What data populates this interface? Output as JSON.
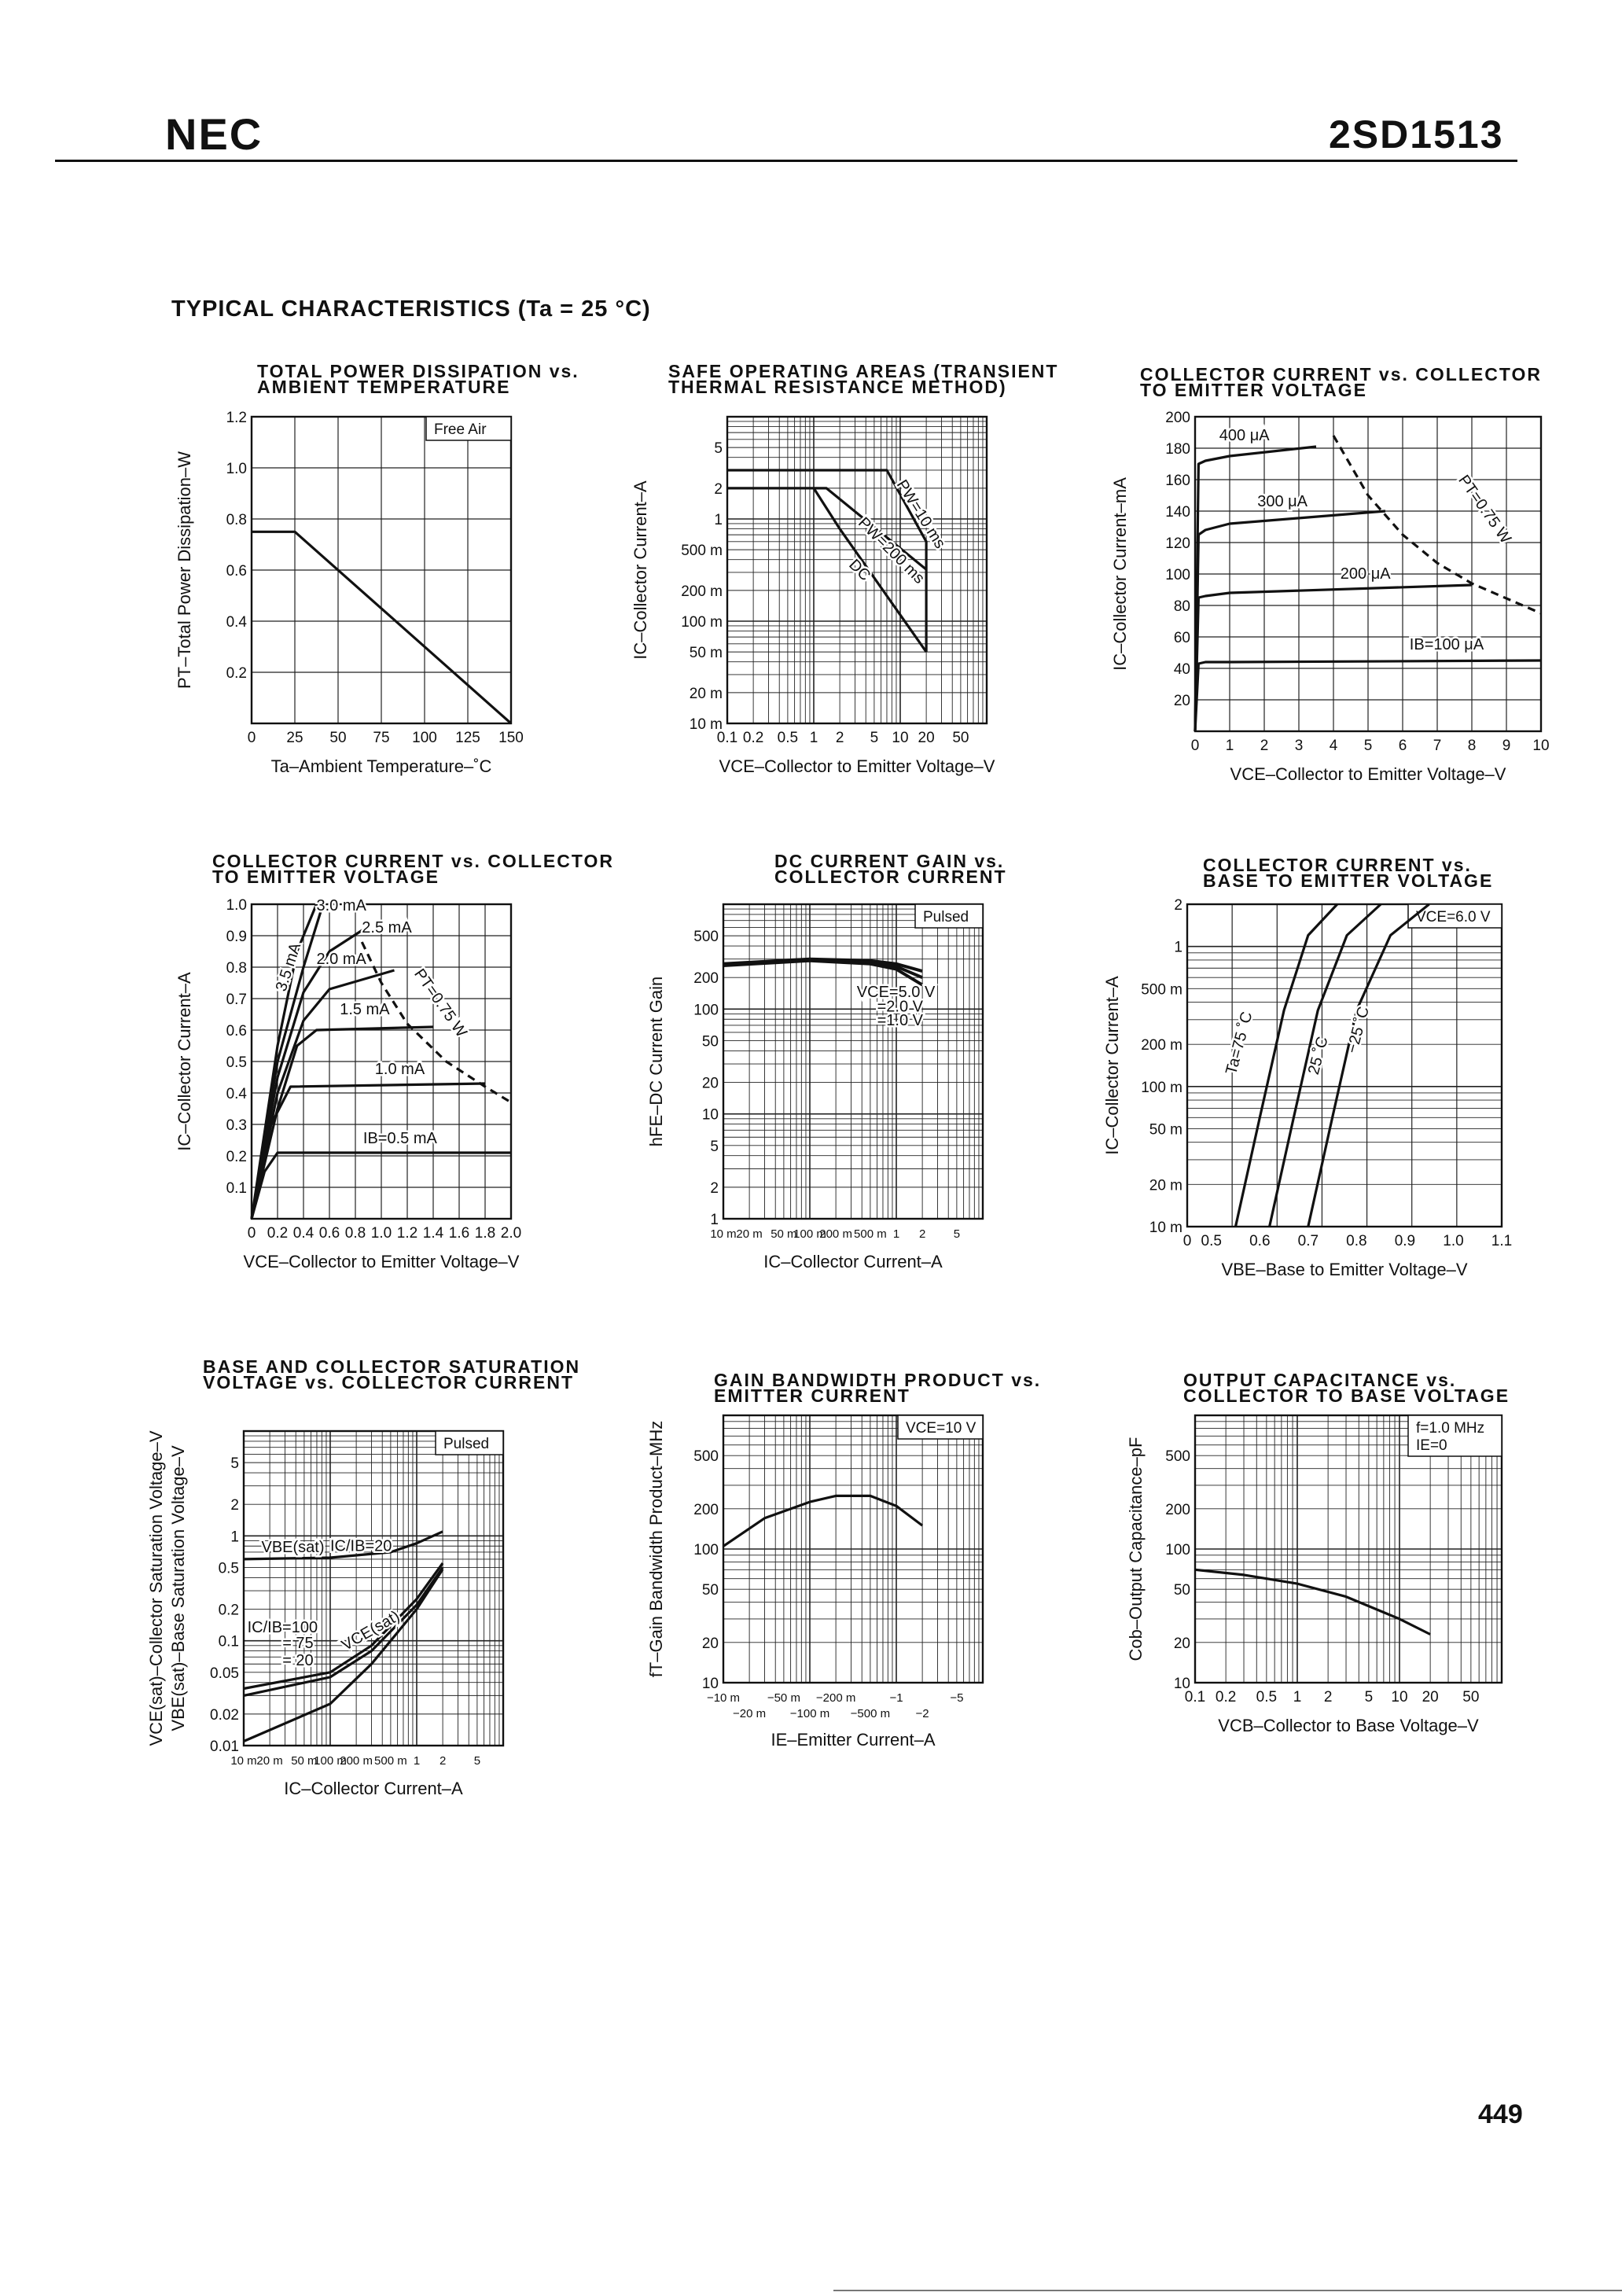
{
  "header": {
    "brand": "NEC",
    "part_number": "2SD1513"
  },
  "section_title": "TYPICAL CHARACTERISTICS (Ta = 25 °C)",
  "page_number": "449",
  "charts": [
    {
      "title": "TOTAL POWER DISSIPATION vs.\nAMBIENT TEMPERATURE",
      "xlabel": "Ta–Ambient Temperature–˚C",
      "ylabel": "PT–Total Power Dissipation–W",
      "xticks": [
        "0",
        "25",
        "50",
        "75",
        "100",
        "125",
        "150"
      ],
      "yticks": [
        "1.2",
        "1.0",
        "0.8",
        "0.6",
        "0.4",
        "0.2"
      ],
      "annotation": "Free Air"
    },
    {
      "title": "SAFE OPERATING AREAS (TRANSIENT\nTHERMAL RESISTANCE METHOD)",
      "xlabel": "VCE–Collector to Emitter Voltage–V",
      "ylabel": "IC–Collector Current–A",
      "xticks": [
        "0.1",
        "0.2",
        "0.5",
        "1",
        "2",
        "5",
        "10",
        "20",
        "50"
      ],
      "yticks": [
        "5",
        "2",
        "1",
        "500 m",
        "200 m",
        "100 m",
        "50 m",
        "20 m",
        "10 m"
      ],
      "labels": [
        "PW=10 ms",
        "PW=200 ms",
        "DC"
      ]
    },
    {
      "title": "COLLECTOR CURRENT vs. COLLECTOR\nTO EMITTER VOLTAGE",
      "xlabel": "VCE–Collector to Emitter Voltage–V",
      "ylabel": "IC–Collector Current–mA",
      "xticks": [
        "0",
        "1",
        "2",
        "3",
        "4",
        "5",
        "6",
        "7",
        "8",
        "9",
        "10"
      ],
      "yticks": [
        "200",
        "180",
        "160",
        "140",
        "120",
        "100",
        "80",
        "60",
        "40",
        "20"
      ],
      "labels": [
        "400 μA",
        "300 μA",
        "200 μA",
        "IB=100 μA",
        "PT=0.75 W"
      ]
    },
    {
      "title": "COLLECTOR CURRENT vs. COLLECTOR\nTO EMITTER VOLTAGE",
      "xlabel": "VCE–Collector to Emitter Voltage–V",
      "ylabel": "IC–Collector Current–A",
      "xticks": [
        "0",
        "0.2",
        "0.4",
        "0.6",
        "0.8",
        "1.0",
        "1.2",
        "1.4",
        "1.6",
        "1.8",
        "2.0"
      ],
      "yticks": [
        "1.0",
        "0.9",
        "0.8",
        "0.7",
        "0.6",
        "0.5",
        "0.4",
        "0.3",
        "0.2",
        "0.1"
      ],
      "labels": [
        "3.5 mA",
        "3.0 mA",
        "2.5 mA",
        "2.0 mA",
        "1.5 mA",
        "1.0 mA",
        "IB=0.5 mA",
        "PT=0.75 W"
      ]
    },
    {
      "title": "DC CURRENT GAIN vs.\nCOLLECTOR CURRENT",
      "xlabel": "IC–Collector Current–A",
      "ylabel": "hFE–DC Current Gain",
      "xticks": [
        "10 m",
        "20 m",
        "50 m",
        "100 m",
        "200 m",
        "500 m",
        "1",
        "2",
        "5"
      ],
      "yticks": [
        "500",
        "200",
        "100",
        "50",
        "20",
        "10",
        "5",
        "2",
        "1"
      ],
      "labels": [
        "VCE=5.0 V",
        "=2.0 V",
        "=1.0 V"
      ],
      "annotation": "Pulsed"
    },
    {
      "title": "COLLECTOR CURRENT vs.\nBASE TO EMITTER VOLTAGE",
      "xlabel": "VBE–Base to Emitter Voltage–V",
      "ylabel": "IC–Collector Current–A",
      "xticks": [
        "0",
        "0.5",
        "0.6",
        "0.7",
        "0.8",
        "0.9",
        "1.0",
        "1.1"
      ],
      "yticks": [
        "2",
        "1",
        "500 m",
        "200 m",
        "100 m",
        "50 m",
        "20 m",
        "10 m"
      ],
      "labels": [
        "Ta=75 ˚C",
        "25 ˚C",
        "−25 ˚C"
      ],
      "annotation": "VCE=6.0 V"
    },
    {
      "title": "BASE AND COLLECTOR SATURATION\nVOLTAGE vs. COLLECTOR CURRENT",
      "xlabel": "IC–Collector Current–A",
      "ylabel": "VCE(sat)–Collector Saturation Voltage–V",
      "ylabel2": "VBE(sat)–Base Saturation Voltage–V",
      "xticks": [
        "10 m",
        "20 m",
        "50 m",
        "100 m",
        "200 m",
        "500 m",
        "1",
        "2",
        "5"
      ],
      "yticks": [
        "5",
        "2",
        "1",
        "0.5",
        "0.2",
        "0.1",
        "0.05",
        "0.02",
        "0.01"
      ],
      "labels": [
        "VBE(sat)",
        "IC/IB=20",
        "IC/IB=100",
        "= 75",
        "= 20",
        "VCE(sat)"
      ],
      "annotation": "Pulsed"
    },
    {
      "title": "GAIN BANDWIDTH PRODUCT vs.\nEMITTER CURRENT",
      "xlabel": "IE–Emitter Current–A",
      "ylabel": "fT–Gain Bandwidth Product–MHz",
      "xticks": [
        "−10 m",
        "−20 m",
        "−50 m",
        "−100 m",
        "−200 m",
        "−500 m",
        "−1",
        "−2",
        "−5"
      ],
      "yticks": [
        "500",
        "200",
        "100",
        "50",
        "20",
        "10"
      ],
      "annotation": "VCE=10 V"
    },
    {
      "title": "OUTPUT CAPACITANCE vs.\nCOLLECTOR TO BASE VOLTAGE",
      "xlabel": "VCB–Collector to Base Voltage–V",
      "ylabel": "Cob–Output Capacitance–pF",
      "xticks": [
        "0.1",
        "0.2",
        "0.5",
        "1",
        "2",
        "5",
        "10",
        "20",
        "50"
      ],
      "yticks": [
        "500",
        "200",
        "100",
        "50",
        "20",
        "10"
      ],
      "annotation": "f=1.0 MHz",
      "annotation2": "IE=0"
    }
  ],
  "chart_data": [
    {
      "type": "line",
      "title": "TOTAL POWER DISSIPATION vs. AMBIENT TEMPERATURE",
      "xlabel": "Ta–Ambient Temperature–˚C",
      "ylabel": "PT–Total Power Dissipation–W",
      "xlim": [
        0,
        150
      ],
      "ylim": [
        0,
        1.2
      ],
      "series": [
        {
          "x": [
            0,
            25,
            150
          ],
          "y": [
            0.75,
            0.75,
            0
          ]
        }
      ]
    },
    {
      "type": "line",
      "title": "SAFE OPERATING AREAS",
      "xscale": "log",
      "yscale": "log",
      "xlim": [
        0.1,
        100
      ],
      "ylim": [
        0.01,
        10
      ],
      "series": [
        {
          "name": "PW=10 ms",
          "x": [
            0.1,
            7,
            20,
            20
          ],
          "y": [
            3,
            3,
            0.6,
            0.05
          ]
        },
        {
          "name": "PW=200 ms",
          "x": [
            0.1,
            1.4,
            20
          ],
          "y": [
            2,
            2,
            0.32
          ]
        },
        {
          "name": "DC",
          "x": [
            1,
            2,
            20
          ],
          "y": [
            2,
            0.8,
            0.05
          ]
        }
      ]
    },
    {
      "type": "line",
      "title": "COLLECTOR CURRENT vs. COLLECTOR TO EMITTER VOLTAGE (mA)",
      "xlim": [
        0,
        10
      ],
      "ylim": [
        0,
        200
      ],
      "series": [
        {
          "name": "400 μA",
          "x": [
            0,
            0.1,
            0.3,
            1,
            3.5
          ],
          "y": [
            0,
            170,
            172,
            175,
            181
          ]
        },
        {
          "name": "300 μA",
          "x": [
            0,
            0.1,
            0.3,
            1,
            5.5
          ],
          "y": [
            0,
            125,
            128,
            132,
            140
          ]
        },
        {
          "name": "200 μA",
          "x": [
            0,
            0.1,
            0.3,
            1,
            8
          ],
          "y": [
            0,
            85,
            86,
            88,
            93
          ]
        },
        {
          "name": "IB=100 μA",
          "x": [
            0,
            0.1,
            0.3,
            1,
            10
          ],
          "y": [
            0,
            43,
            44,
            44,
            45
          ]
        },
        {
          "name": "PT=0.75 W",
          "x": [
            4,
            5,
            6,
            7,
            8,
            10
          ],
          "y": [
            188,
            150,
            125,
            107,
            94,
            75
          ]
        }
      ]
    },
    {
      "type": "line",
      "title": "COLLECTOR CURRENT vs. COLLECTOR TO EMITTER VOLTAGE (A)",
      "xlim": [
        0,
        2.0
      ],
      "ylim": [
        0,
        1.0
      ],
      "series": [
        {
          "name": "3.5 mA",
          "x": [
            0,
            0.2,
            0.35,
            0.5
          ],
          "y": [
            0,
            0.55,
            0.85,
            1.0
          ]
        },
        {
          "name": "3.0 mA",
          "x": [
            0,
            0.2,
            0.4,
            0.55
          ],
          "y": [
            0,
            0.5,
            0.8,
            1.0
          ]
        },
        {
          "name": "2.5 mA",
          "x": [
            0,
            0.2,
            0.4,
            0.6,
            0.9
          ],
          "y": [
            0,
            0.45,
            0.72,
            0.85,
            0.93
          ]
        },
        {
          "name": "2.0 mA",
          "x": [
            0,
            0.2,
            0.4,
            0.6,
            1.1
          ],
          "y": [
            0,
            0.4,
            0.63,
            0.73,
            0.79
          ]
        },
        {
          "name": "1.5 mA",
          "x": [
            0,
            0.2,
            0.35,
            0.5,
            1.4
          ],
          "y": [
            0,
            0.35,
            0.55,
            0.6,
            0.61
          ]
        },
        {
          "name": "1.0 mA",
          "x": [
            0,
            0.15,
            0.3,
            1.8
          ],
          "y": [
            0,
            0.3,
            0.42,
            0.43
          ]
        },
        {
          "name": "IB=0.5 mA",
          "x": [
            0,
            0.1,
            0.2,
            2.0
          ],
          "y": [
            0,
            0.15,
            0.21,
            0.21
          ]
        },
        {
          "name": "PT=0.75 W",
          "x": [
            0.85,
            1.0,
            1.2,
            1.5,
            1.8,
            2.0
          ],
          "y": [
            0.88,
            0.75,
            0.62,
            0.5,
            0.42,
            0.37
          ]
        }
      ]
    },
    {
      "type": "line",
      "title": "DC CURRENT GAIN vs. COLLECTOR CURRENT",
      "xscale": "log",
      "yscale": "log",
      "xlim": [
        0.01,
        10
      ],
      "ylim": [
        1,
        1000
      ],
      "annotation": "Pulsed",
      "series": [
        {
          "name": "VCE=5.0 V",
          "x": [
            0.01,
            0.1,
            0.5,
            1,
            2
          ],
          "y": [
            270,
            300,
            290,
            270,
            230
          ]
        },
        {
          "name": "=2.0 V",
          "x": [
            0.01,
            0.1,
            0.5,
            1,
            2
          ],
          "y": [
            265,
            295,
            280,
            255,
            200
          ]
        },
        {
          "name": "=1.0 V",
          "x": [
            0.01,
            0.1,
            0.5,
            1,
            2
          ],
          "y": [
            260,
            290,
            270,
            240,
            170
          ]
        }
      ]
    },
    {
      "type": "line",
      "title": "COLLECTOR CURRENT vs. BASE TO EMITTER VOLTAGE",
      "yscale": "log",
      "xlim": [
        0.45,
        1.1
      ],
      "ylim": [
        0.01,
        2
      ],
      "annotation": "VCE=6.0 V",
      "series": [
        {
          "name": "Ta=75 ˚C",
          "x": [
            0.55,
            0.6,
            0.65,
            0.7,
            0.76
          ],
          "y": [
            0.01,
            0.06,
            0.35,
            1.2,
            2.0
          ]
        },
        {
          "name": "25 ˚C",
          "x": [
            0.62,
            0.67,
            0.72,
            0.78,
            0.85
          ],
          "y": [
            0.01,
            0.06,
            0.35,
            1.2,
            2.0
          ]
        },
        {
          "name": "−25 ˚C",
          "x": [
            0.7,
            0.75,
            0.8,
            0.87,
            0.95
          ],
          "y": [
            0.01,
            0.06,
            0.35,
            1.2,
            2.0
          ]
        }
      ]
    },
    {
      "type": "line",
      "title": "BASE AND COLLECTOR SATURATION VOLTAGE vs. COLLECTOR CURRENT",
      "xscale": "log",
      "yscale": "log",
      "xlim": [
        0.01,
        10
      ],
      "ylim": [
        0.01,
        10
      ],
      "annotation": "Pulsed",
      "series": [
        {
          "name": "VBE(sat) IC/IB=20",
          "x": [
            0.01,
            0.1,
            0.5,
            1,
            2
          ],
          "y": [
            0.6,
            0.62,
            0.7,
            0.85,
            1.1
          ]
        },
        {
          "name": "VCE(sat) IC/IB=100",
          "x": [
            0.01,
            0.1,
            0.3,
            1,
            2
          ],
          "y": [
            0.035,
            0.05,
            0.09,
            0.25,
            0.55
          ]
        },
        {
          "name": "VCE(sat) IC/IB=75",
          "x": [
            0.01,
            0.1,
            0.3,
            1,
            2
          ],
          "y": [
            0.03,
            0.045,
            0.08,
            0.22,
            0.5
          ]
        },
        {
          "name": "VCE(sat) IC/IB=20",
          "x": [
            0.01,
            0.1,
            0.3,
            1,
            2
          ],
          "y": [
            0.011,
            0.025,
            0.06,
            0.2,
            0.48
          ]
        }
      ]
    },
    {
      "type": "line",
      "title": "GAIN BANDWIDTH PRODUCT vs. EMITTER CURRENT",
      "xscale": "log",
      "yscale": "log",
      "xlim": [
        0.01,
        10
      ],
      "ylim": [
        10,
        1000
      ],
      "annotation": "VCE=10 V",
      "series": [
        {
          "x": [
            0.01,
            0.03,
            0.1,
            0.2,
            0.5,
            1,
            2
          ],
          "y": [
            105,
            170,
            225,
            250,
            250,
            210,
            150
          ]
        }
      ]
    },
    {
      "type": "line",
      "title": "OUTPUT CAPACITANCE vs. COLLECTOR TO BASE VOLTAGE",
      "xscale": "log",
      "yscale": "log",
      "xlim": [
        0.1,
        100
      ],
      "ylim": [
        10,
        1000
      ],
      "annotation": "f=1.0 MHz, IE=0",
      "series": [
        {
          "x": [
            0.1,
            0.3,
            1,
            3,
            10,
            20
          ],
          "y": [
            70,
            64,
            55,
            44,
            30,
            23
          ]
        }
      ]
    }
  ]
}
